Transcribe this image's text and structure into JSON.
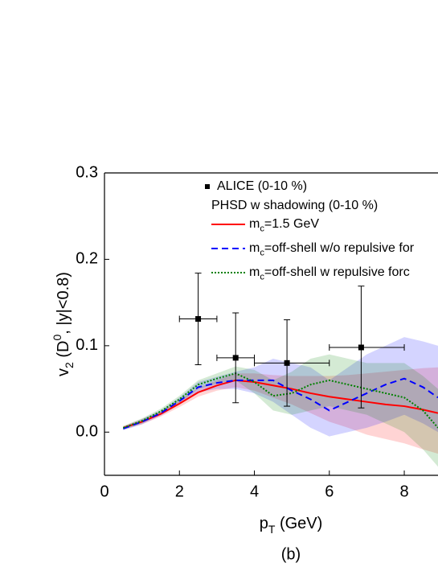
{
  "chart_data": {
    "type": "line",
    "xlabel": "pT (GeV)",
    "ylabel": "v2 (D0, |y|<0.8)",
    "annotation": "(b)",
    "legend_title": "PHSD w shadowing (0-10 %)",
    "xlim": [
      0,
      8.9
    ],
    "xticks": [
      0,
      2,
      4,
      6,
      8
    ],
    "ylim": [
      -0.05,
      0.3
    ],
    "yticks": [
      {
        "value": 0,
        "label": "0.0"
      },
      0.1,
      0.2,
      0.3
    ],
    "points": {
      "name": "ALICE (0-10 %)",
      "color": "#000000",
      "x": [
        2.5,
        3.5,
        4.87,
        6.85
      ],
      "values": [
        0.131,
        0.086,
        0.08,
        0.098
      ],
      "x_lo": [
        2.0,
        3.0,
        4.0,
        6.0
      ],
      "x_hi": [
        3.0,
        4.0,
        6.0,
        8.0
      ],
      "y_lo": [
        0.078,
        0.034,
        0.03,
        0.028
      ],
      "y_hi": [
        0.184,
        0.138,
        0.13,
        0.169
      ]
    },
    "x": [
      0.5,
      1,
      1.5,
      2,
      2.5,
      3,
      3.5,
      4,
      4.5,
      5,
      5.5,
      6,
      6.5,
      7,
      7.5,
      8,
      8.5,
      8.9
    ],
    "series": [
      {
        "name": "mc=1.5 GeV",
        "color": "#ff0000",
        "dash": "solid",
        "values": [
          0.005,
          0.012,
          0.021,
          0.033,
          0.046,
          0.054,
          0.06,
          0.058,
          0.054,
          0.05,
          0.045,
          0.041,
          0.038,
          0.035,
          0.032,
          0.03,
          0.026,
          0.022
        ],
        "lower": [
          0.003,
          0.009,
          0.018,
          0.029,
          0.041,
          0.048,
          0.052,
          0.048,
          0.04,
          0.032,
          0.022,
          0.012,
          0.005,
          -0.003,
          -0.008,
          -0.013,
          -0.02,
          -0.025
        ],
        "upper": [
          0.007,
          0.015,
          0.024,
          0.037,
          0.051,
          0.06,
          0.068,
          0.068,
          0.066,
          0.065,
          0.065,
          0.065,
          0.066,
          0.068,
          0.07,
          0.072,
          0.074,
          0.075
        ]
      },
      {
        "name": "mc=off-shell w/o repulsive for",
        "color": "#0000ff",
        "dash": "dashed",
        "values": [
          0.004,
          0.012,
          0.022,
          0.036,
          0.052,
          0.057,
          0.06,
          0.06,
          0.06,
          0.048,
          0.038,
          0.025,
          0.035,
          0.045,
          0.055,
          0.062,
          0.052,
          0.04
        ],
        "lower": [
          0.002,
          0.009,
          0.019,
          0.032,
          0.046,
          0.05,
          0.05,
          0.045,
          0.035,
          0.02,
          0.005,
          -0.005,
          0.0,
          0.005,
          0.012,
          0.02,
          0.01,
          0.0
        ],
        "upper": [
          0.006,
          0.015,
          0.025,
          0.04,
          0.058,
          0.064,
          0.07,
          0.075,
          0.085,
          0.08,
          0.075,
          0.06,
          0.075,
          0.09,
          0.1,
          0.11,
          0.105,
          0.1
        ]
      },
      {
        "name": "mc=off-shell w repulsive forc",
        "color": "#008000",
        "dash": "dotted",
        "values": [
          0.005,
          0.013,
          0.024,
          0.038,
          0.055,
          0.062,
          0.068,
          0.058,
          0.042,
          0.045,
          0.055,
          0.06,
          0.055,
          0.05,
          0.045,
          0.04,
          0.025,
          0.005
        ],
        "lower": [
          0.003,
          0.01,
          0.021,
          0.034,
          0.05,
          0.056,
          0.06,
          0.045,
          0.025,
          0.02,
          0.025,
          0.03,
          0.025,
          0.02,
          0.01,
          0.0,
          -0.02,
          -0.04
        ],
        "upper": [
          0.007,
          0.016,
          0.027,
          0.042,
          0.06,
          0.068,
          0.076,
          0.072,
          0.06,
          0.07,
          0.085,
          0.09,
          0.085,
          0.08,
          0.08,
          0.08,
          0.065,
          0.05
        ]
      }
    ]
  }
}
